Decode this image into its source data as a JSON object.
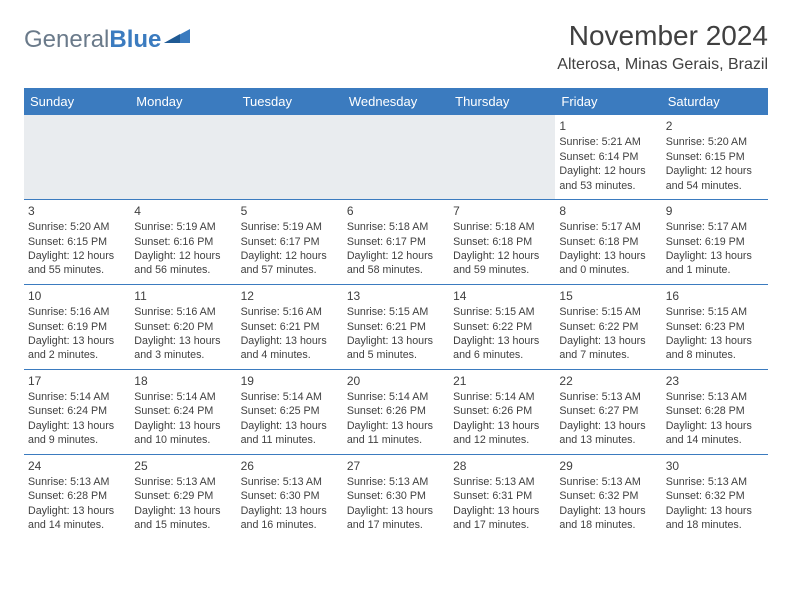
{
  "brand": {
    "part1": "General",
    "part2": "Blue"
  },
  "title": "November 2024",
  "location": "Alterosa, Minas Gerais, Brazil",
  "colors": {
    "header_bg": "#3b7bbf",
    "header_text": "#ffffff",
    "rule": "#3b7bbf",
    "body_text": "#404040",
    "empty_fill": "#e9ecef"
  },
  "dayHeaders": [
    "Sunday",
    "Monday",
    "Tuesday",
    "Wednesday",
    "Thursday",
    "Friday",
    "Saturday"
  ],
  "weeks": [
    [
      null,
      null,
      null,
      null,
      null,
      {
        "n": "1",
        "sunrise": "5:21 AM",
        "sunset": "6:14 PM",
        "daylight": "12 hours and 53 minutes."
      },
      {
        "n": "2",
        "sunrise": "5:20 AM",
        "sunset": "6:15 PM",
        "daylight": "12 hours and 54 minutes."
      }
    ],
    [
      {
        "n": "3",
        "sunrise": "5:20 AM",
        "sunset": "6:15 PM",
        "daylight": "12 hours and 55 minutes."
      },
      {
        "n": "4",
        "sunrise": "5:19 AM",
        "sunset": "6:16 PM",
        "daylight": "12 hours and 56 minutes."
      },
      {
        "n": "5",
        "sunrise": "5:19 AM",
        "sunset": "6:17 PM",
        "daylight": "12 hours and 57 minutes."
      },
      {
        "n": "6",
        "sunrise": "5:18 AM",
        "sunset": "6:17 PM",
        "daylight": "12 hours and 58 minutes."
      },
      {
        "n": "7",
        "sunrise": "5:18 AM",
        "sunset": "6:18 PM",
        "daylight": "12 hours and 59 minutes."
      },
      {
        "n": "8",
        "sunrise": "5:17 AM",
        "sunset": "6:18 PM",
        "daylight": "13 hours and 0 minutes."
      },
      {
        "n": "9",
        "sunrise": "5:17 AM",
        "sunset": "6:19 PM",
        "daylight": "13 hours and 1 minute."
      }
    ],
    [
      {
        "n": "10",
        "sunrise": "5:16 AM",
        "sunset": "6:19 PM",
        "daylight": "13 hours and 2 minutes."
      },
      {
        "n": "11",
        "sunrise": "5:16 AM",
        "sunset": "6:20 PM",
        "daylight": "13 hours and 3 minutes."
      },
      {
        "n": "12",
        "sunrise": "5:16 AM",
        "sunset": "6:21 PM",
        "daylight": "13 hours and 4 minutes."
      },
      {
        "n": "13",
        "sunrise": "5:15 AM",
        "sunset": "6:21 PM",
        "daylight": "13 hours and 5 minutes."
      },
      {
        "n": "14",
        "sunrise": "5:15 AM",
        "sunset": "6:22 PM",
        "daylight": "13 hours and 6 minutes."
      },
      {
        "n": "15",
        "sunrise": "5:15 AM",
        "sunset": "6:22 PM",
        "daylight": "13 hours and 7 minutes."
      },
      {
        "n": "16",
        "sunrise": "5:15 AM",
        "sunset": "6:23 PM",
        "daylight": "13 hours and 8 minutes."
      }
    ],
    [
      {
        "n": "17",
        "sunrise": "5:14 AM",
        "sunset": "6:24 PM",
        "daylight": "13 hours and 9 minutes."
      },
      {
        "n": "18",
        "sunrise": "5:14 AM",
        "sunset": "6:24 PM",
        "daylight": "13 hours and 10 minutes."
      },
      {
        "n": "19",
        "sunrise": "5:14 AM",
        "sunset": "6:25 PM",
        "daylight": "13 hours and 11 minutes."
      },
      {
        "n": "20",
        "sunrise": "5:14 AM",
        "sunset": "6:26 PM",
        "daylight": "13 hours and 11 minutes."
      },
      {
        "n": "21",
        "sunrise": "5:14 AM",
        "sunset": "6:26 PM",
        "daylight": "13 hours and 12 minutes."
      },
      {
        "n": "22",
        "sunrise": "5:13 AM",
        "sunset": "6:27 PM",
        "daylight": "13 hours and 13 minutes."
      },
      {
        "n": "23",
        "sunrise": "5:13 AM",
        "sunset": "6:28 PM",
        "daylight": "13 hours and 14 minutes."
      }
    ],
    [
      {
        "n": "24",
        "sunrise": "5:13 AM",
        "sunset": "6:28 PM",
        "daylight": "13 hours and 14 minutes."
      },
      {
        "n": "25",
        "sunrise": "5:13 AM",
        "sunset": "6:29 PM",
        "daylight": "13 hours and 15 minutes."
      },
      {
        "n": "26",
        "sunrise": "5:13 AM",
        "sunset": "6:30 PM",
        "daylight": "13 hours and 16 minutes."
      },
      {
        "n": "27",
        "sunrise": "5:13 AM",
        "sunset": "6:30 PM",
        "daylight": "13 hours and 17 minutes."
      },
      {
        "n": "28",
        "sunrise": "5:13 AM",
        "sunset": "6:31 PM",
        "daylight": "13 hours and 17 minutes."
      },
      {
        "n": "29",
        "sunrise": "5:13 AM",
        "sunset": "6:32 PM",
        "daylight": "13 hours and 18 minutes."
      },
      {
        "n": "30",
        "sunrise": "5:13 AM",
        "sunset": "6:32 PM",
        "daylight": "13 hours and 18 minutes."
      }
    ]
  ],
  "labels": {
    "sunrise": "Sunrise: ",
    "sunset": "Sunset: ",
    "daylight": "Daylight: "
  }
}
